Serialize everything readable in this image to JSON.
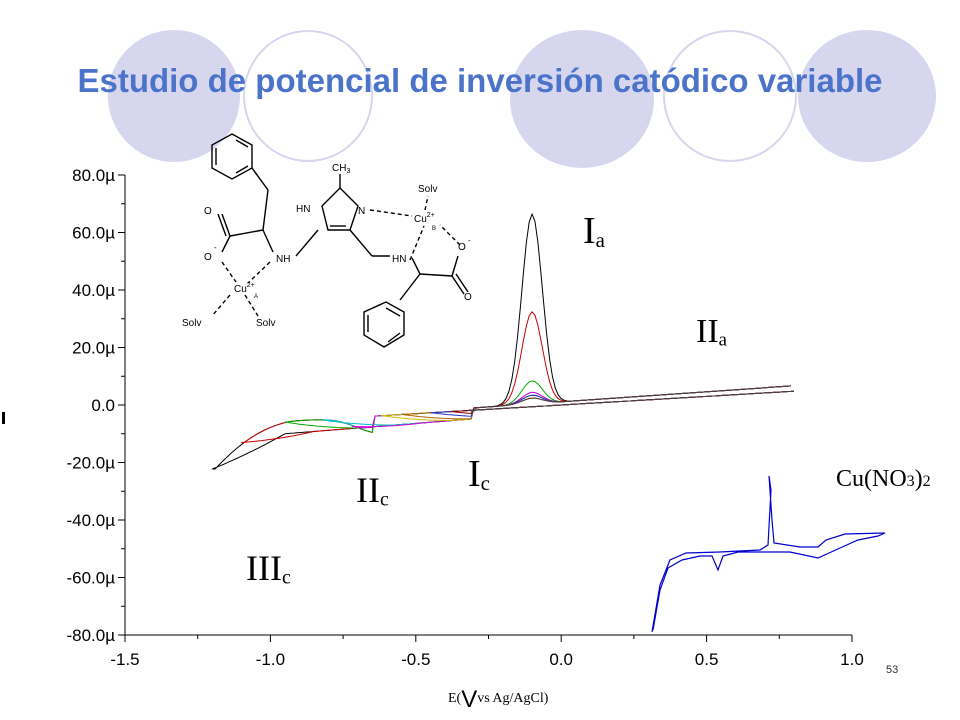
{
  "slide": {
    "title": "Estudio de potencial de inversión catódico variable",
    "page_number": "53",
    "xaxis_label": {
      "prefix": "E(",
      "unit": "V",
      "suffix": "vs Ag/AgCl)"
    }
  },
  "chart_data": {
    "type": "line",
    "title": "Estudio de potencial de inversión catódico variable",
    "xlabel": "E( V vs Ag/AgCl)",
    "ylabel": "I",
    "xlim": [
      -1.5,
      1.0
    ],
    "ylim": [
      -80,
      80
    ],
    "y_unit": "µ",
    "x_ticks": [
      "-1.5",
      "-1.0",
      "-0.5",
      "0.0",
      "0.5",
      "1.0"
    ],
    "y_ticks": [
      "80.0µ",
      "60.0µ",
      "40.0µ",
      "20.0µ",
      "0.0",
      "-20.0µ",
      "-40.0µ",
      "-60.0µ",
      "-80.0µ"
    ],
    "peak_labels": [
      {
        "text": "Ia",
        "base": "I",
        "sub": "a"
      },
      {
        "text": "IIa",
        "base": "II",
        "sub": "a"
      },
      {
        "text": "Ic",
        "base": "I",
        "sub": "c"
      },
      {
        "text": "IIc",
        "base": "II",
        "sub": "c"
      },
      {
        "text": "IIIc",
        "base": "III",
        "sub": "c"
      }
    ],
    "series": [
      {
        "color": "#000000",
        "switch_potential": -1.2,
        "anodic_peak_current": 66
      },
      {
        "color": "#cc0000",
        "switch_potential": -1.1,
        "anodic_peak_current": 32
      },
      {
        "color": "#00aa00",
        "switch_potential": -0.95,
        "anodic_peak_current": 8
      },
      {
        "color": "#00bbcc",
        "switch_potential": -0.82,
        "anodic_peak_current": 4
      },
      {
        "color": "#dd00dd",
        "switch_potential": -0.72,
        "anodic_peak_current": 4
      },
      {
        "color": "#ccbb00",
        "switch_potential": -0.62,
        "anodic_peak_current": 3
      },
      {
        "color": "#aa6600",
        "switch_potential": -0.55,
        "anodic_peak_current": 3
      },
      {
        "color": "#2233cc",
        "switch_potential": -0.45,
        "anodic_peak_current": 3
      },
      {
        "color": "#880000",
        "switch_potential": -0.38,
        "anodic_peak_current": 2
      },
      {
        "color": "#444444",
        "switch_potential": -0.32,
        "anodic_peak_current": 2
      }
    ],
    "inset": {
      "label": {
        "base": "Cu(NO",
        "sub": "3",
        "close": ")",
        "sub2": "2"
      },
      "color": "#0000cc"
    }
  },
  "structure": {
    "labels": {
      "ch3": "CH",
      "ch3_sub": "3",
      "hn_top": "HN",
      "n_ring": "N",
      "solv_top": "Solv",
      "cu_b": "Cu",
      "cu_b_sup": "2+",
      "cu_b_sub": "B",
      "o_left": "O",
      "o_minus_left": "O",
      "minus": "-",
      "nh_left": "NH",
      "hn_right": "HN",
      "o_right_minus": "O",
      "o_right": "O",
      "cu_a": "Cu",
      "cu_a_sup": "2+",
      "cu_a_sub": "A",
      "solv_left": "Solv",
      "solv_bottom": "Solv"
    }
  }
}
